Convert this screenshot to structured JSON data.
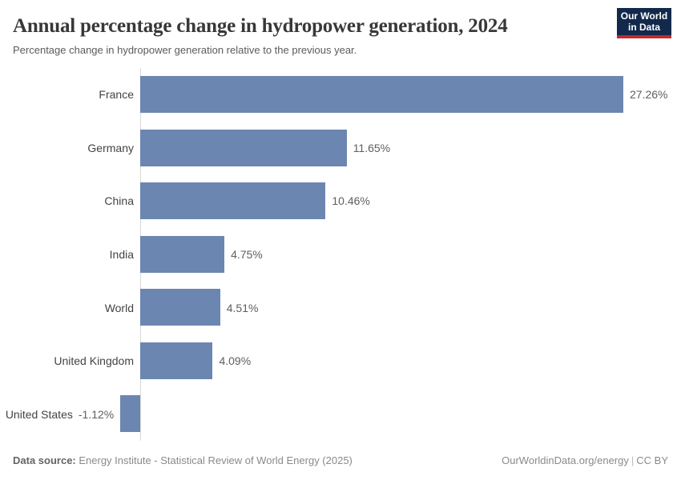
{
  "header": {
    "title": "Annual percentage change in hydropower generation, 2024",
    "subtitle": "Percentage change in hydropower generation relative to the previous year.",
    "logo": {
      "line1": "Our World",
      "line2": "in Data"
    }
  },
  "chart_data": {
    "type": "bar",
    "orientation": "horizontal",
    "title": "Annual percentage change in hydropower generation, 2024",
    "xlabel": "",
    "ylabel": "",
    "categories": [
      "France",
      "Germany",
      "China",
      "India",
      "World",
      "United Kingdom",
      "United States"
    ],
    "values": [
      27.26,
      11.65,
      10.46,
      4.75,
      4.51,
      4.09,
      -1.12
    ],
    "value_labels": [
      "27.26%",
      "11.65%",
      "10.46%",
      "4.75%",
      "4.51%",
      "4.09%",
      "-1.12%"
    ],
    "value_suffix": "%",
    "xlim": [
      -1.12,
      27.26
    ],
    "grid": false,
    "legend": false,
    "bar_color": "#6b86b1",
    "axis_color": "#d9d9d9"
  },
  "footer": {
    "source_label": "Data source:",
    "source_text": " Energy Institute - Statistical Review of World Energy (2025)",
    "link": "OurWorldinData.org/energy",
    "separator": "|",
    "license": "CC BY"
  }
}
